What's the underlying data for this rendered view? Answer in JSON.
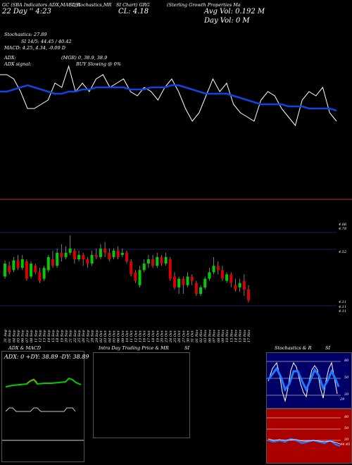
{
  "header": {
    "source_line": "GC (SBA Indicators ADX,MACD,R",
    "rsi_line": "SI,Stochastics,MR",
    "ticker_line": "SI Chart) GRG",
    "company": "(Sterling Growth Properties Ma",
    "date_line": "22 Day '' 4:23",
    "close_label": "CL: 4.18",
    "avg_vol": "Avg Vol: 0.192  M",
    "day_vol": "Day Vol: 0   M",
    "stoch": "Stochastics: 27.89",
    "rsi": "SI 14/5: 44.45 / 40.42",
    "macd": "MACD: 4.25, 4.34, -0.09 D",
    "adx": "ADX:",
    "adx_vals": "(MGR) 0, 38.9, 38.9",
    "adx_signal": "ADX signal:",
    "buy": "BUY Slowing @ 0%"
  },
  "price_axis": {
    "labels": [
      "4.86",
      "4.78",
      "4.52",
      "4.11",
      "4.11",
      "4.11"
    ]
  },
  "panels": {
    "adx_title": "ADX & MACD",
    "adx_values": "ADX: 0  +DY: 38.89 -DY: 38.89",
    "intraday_title": "Intra Day Trading Price & MR",
    "intraday_suffix": "SI",
    "stoch_title": "Stochastics & R",
    "stoch_suffix": "SI",
    "stoch_axis": [
      "80",
      "50",
      "20",
      "29"
    ],
    "rsi_axis": [
      "80",
      "50",
      "20",
      "44.45"
    ]
  },
  "colors": {
    "up": "#00cc00",
    "down": "#dd0000",
    "sma": "#1144dd",
    "adx_line": "#00cc00",
    "stoch_bg": "#000066",
    "rsi_bg": "#aa0000"
  },
  "chart_data": {
    "type": "candlestick",
    "dates": [
      "31 Aug",
      "01 Sep",
      "04 Sep",
      "05 Sep",
      "06 Sep",
      "07 Sep",
      "08 Sep",
      "11 Sep",
      "12 Sep",
      "13 Sep",
      "14 Sep",
      "15 Sep",
      "18 Sep",
      "19 Sep",
      "20 Sep",
      "21 Sep",
      "22 Sep",
      "25 Sep",
      "26 Sep",
      "27 Sep",
      "28 Sep",
      "29 Sep",
      "02 Oct",
      "03 Oct",
      "04 Oct",
      "05 Oct",
      "06 Oct",
      "09 Oct",
      "10 Oct",
      "11 Oct",
      "12 Oct",
      "13 Oct",
      "16 Oct",
      "17 Oct",
      "18 Oct",
      "19 Oct",
      "20 Oct",
      "23 Oct",
      "24 Oct",
      "25 Oct",
      "26 Oct",
      "27 Oct",
      "30 Oct",
      "31 Oct",
      "01 Nov",
      "02 Nov",
      "03 Nov",
      "06 Nov",
      "07 Nov",
      "08 Nov",
      "09 Nov",
      "10 Nov",
      "13 Nov",
      "14 Nov",
      "15 Nov",
      "16 Nov",
      "17 Nov"
    ],
    "candles": [
      {
        "o": 4.4,
        "c": 4.52,
        "h": 4.55,
        "l": 4.38
      },
      {
        "o": 4.5,
        "c": 4.44,
        "h": 4.54,
        "l": 4.42
      },
      {
        "o": 4.46,
        "c": 4.55,
        "h": 4.58,
        "l": 4.44
      },
      {
        "o": 4.55,
        "c": 4.48,
        "h": 4.6,
        "l": 4.46
      },
      {
        "o": 4.48,
        "c": 4.56,
        "h": 4.6,
        "l": 4.46
      },
      {
        "o": 4.54,
        "c": 4.38,
        "h": 4.56,
        "l": 4.36
      },
      {
        "o": 4.4,
        "c": 4.52,
        "h": 4.54,
        "l": 4.38
      },
      {
        "o": 4.5,
        "c": 4.44,
        "h": 4.52,
        "l": 4.42
      },
      {
        "o": 4.44,
        "c": 4.36,
        "h": 4.48,
        "l": 4.34
      },
      {
        "o": 4.38,
        "c": 4.48,
        "h": 4.5,
        "l": 4.36
      },
      {
        "o": 4.46,
        "c": 4.58,
        "h": 4.6,
        "l": 4.44
      },
      {
        "o": 4.56,
        "c": 4.5,
        "h": 4.64,
        "l": 4.48
      },
      {
        "o": 4.5,
        "c": 4.62,
        "h": 4.66,
        "l": 4.48
      },
      {
        "o": 4.62,
        "c": 4.58,
        "h": 4.7,
        "l": 4.54
      },
      {
        "o": 4.58,
        "c": 4.62,
        "h": 4.68,
        "l": 4.56
      },
      {
        "o": 4.62,
        "c": 4.66,
        "h": 4.78,
        "l": 4.6
      },
      {
        "o": 4.64,
        "c": 4.56,
        "h": 4.66,
        "l": 4.52
      },
      {
        "o": 4.56,
        "c": 4.6,
        "h": 4.64,
        "l": 4.54
      },
      {
        "o": 4.6,
        "c": 4.56,
        "h": 4.62,
        "l": 4.5
      },
      {
        "o": 4.56,
        "c": 4.52,
        "h": 4.58,
        "l": 4.48
      },
      {
        "o": 4.52,
        "c": 4.6,
        "h": 4.64,
        "l": 4.5
      },
      {
        "o": 4.6,
        "c": 4.58,
        "h": 4.66,
        "l": 4.56
      },
      {
        "o": 4.58,
        "c": 4.66,
        "h": 4.7,
        "l": 4.56
      },
      {
        "o": 4.66,
        "c": 4.62,
        "h": 4.72,
        "l": 4.58
      },
      {
        "o": 4.62,
        "c": 4.56,
        "h": 4.66,
        "l": 4.54
      },
      {
        "o": 4.58,
        "c": 4.64,
        "h": 4.66,
        "l": 4.56
      },
      {
        "o": 4.64,
        "c": 4.58,
        "h": 4.68,
        "l": 4.56
      },
      {
        "o": 4.6,
        "c": 4.62,
        "h": 4.66,
        "l": 4.58
      },
      {
        "o": 4.62,
        "c": 4.54,
        "h": 4.64,
        "l": 4.52
      },
      {
        "o": 4.54,
        "c": 4.42,
        "h": 4.56,
        "l": 4.4
      },
      {
        "o": 4.44,
        "c": 4.36,
        "h": 4.46,
        "l": 4.34
      },
      {
        "o": 4.32,
        "c": 4.46,
        "h": 4.5,
        "l": 4.3
      },
      {
        "o": 4.46,
        "c": 4.52,
        "h": 4.56,
        "l": 4.44
      },
      {
        "o": 4.52,
        "c": 4.56,
        "h": 4.6,
        "l": 4.48
      },
      {
        "o": 4.56,
        "c": 4.5,
        "h": 4.6,
        "l": 4.48
      },
      {
        "o": 4.5,
        "c": 4.58,
        "h": 4.62,
        "l": 4.48
      },
      {
        "o": 4.58,
        "c": 4.52,
        "h": 4.6,
        "l": 4.5
      },
      {
        "o": 4.52,
        "c": 4.58,
        "h": 4.62,
        "l": 4.5
      },
      {
        "o": 4.56,
        "c": 4.38,
        "h": 4.58,
        "l": 4.36
      },
      {
        "o": 4.4,
        "c": 4.3,
        "h": 4.44,
        "l": 4.28
      },
      {
        "o": 4.3,
        "c": 4.38,
        "h": 4.4,
        "l": 4.24
      },
      {
        "o": 4.38,
        "c": 4.32,
        "h": 4.4,
        "l": 4.24
      },
      {
        "o": 4.32,
        "c": 4.4,
        "h": 4.44,
        "l": 4.3
      },
      {
        "o": 4.4,
        "c": 4.36,
        "h": 4.42,
        "l": 4.32
      },
      {
        "o": 4.34,
        "c": 4.24,
        "h": 4.36,
        "l": 4.22
      },
      {
        "o": 4.24,
        "c": 4.3,
        "h": 4.32,
        "l": 4.22
      },
      {
        "o": 4.3,
        "c": 4.38,
        "h": 4.4,
        "l": 4.28
      },
      {
        "o": 4.38,
        "c": 4.44,
        "h": 4.48,
        "l": 4.36
      },
      {
        "o": 4.44,
        "c": 4.5,
        "h": 4.58,
        "l": 4.42
      },
      {
        "o": 4.5,
        "c": 4.46,
        "h": 4.54,
        "l": 4.42
      },
      {
        "o": 4.46,
        "c": 4.38,
        "h": 4.5,
        "l": 4.36
      },
      {
        "o": 4.36,
        "c": 4.42,
        "h": 4.44,
        "l": 4.34
      },
      {
        "o": 4.42,
        "c": 4.34,
        "h": 4.44,
        "l": 4.3
      },
      {
        "o": 4.32,
        "c": 4.28,
        "h": 4.38,
        "l": 4.26
      },
      {
        "o": 4.3,
        "c": 4.34,
        "h": 4.38,
        "l": 4.26
      },
      {
        "o": 4.36,
        "c": 4.28,
        "h": 4.42,
        "l": 4.22
      },
      {
        "o": 4.28,
        "c": 4.18,
        "h": 4.32,
        "l": 4.16
      }
    ],
    "ylim": [
      4.11,
      4.86
    ],
    "lines": {
      "white": [
        4.56,
        4.56,
        4.54,
        4.48,
        4.4,
        4.4,
        4.42,
        4.44,
        4.52,
        4.5,
        4.6,
        4.48,
        4.52,
        4.48,
        4.54,
        4.56,
        4.5,
        4.52,
        4.54,
        4.48,
        4.46,
        4.5,
        4.48,
        4.44,
        4.5,
        4.54,
        4.48,
        4.4,
        4.34,
        4.38,
        4.46,
        4.54,
        4.48,
        4.52,
        4.42,
        4.38,
        4.36,
        4.34,
        4.44,
        4.48,
        4.46,
        4.4,
        4.36,
        4.32,
        4.44,
        4.48,
        4.46,
        4.5,
        4.38,
        4.34
      ],
      "blue": [
        4.48,
        4.48,
        4.49,
        4.5,
        4.51,
        4.5,
        4.49,
        4.48,
        4.47,
        4.47,
        4.48,
        4.48,
        4.49,
        4.49,
        4.5,
        4.5,
        4.5,
        4.5,
        4.5,
        4.49,
        4.49,
        4.49,
        4.5,
        4.5,
        4.5,
        4.51,
        4.51,
        4.5,
        4.49,
        4.48,
        4.47,
        4.47,
        4.47,
        4.47,
        4.46,
        4.45,
        4.44,
        4.43,
        4.42,
        4.42,
        4.42,
        4.42,
        4.41,
        4.41,
        4.41,
        4.4,
        4.4,
        4.4,
        4.4,
        4.39
      ]
    }
  }
}
